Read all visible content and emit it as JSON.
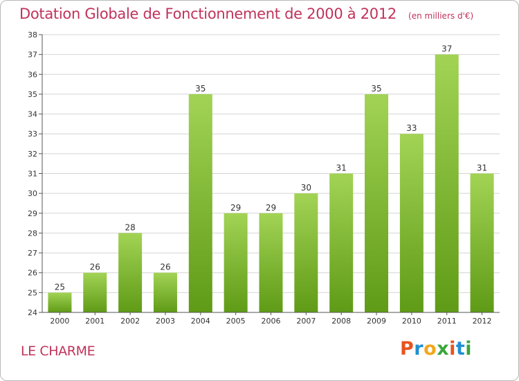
{
  "header": {
    "title": "Dotation Globale de Fonctionnement de 2000 à 2012",
    "unit": "(en milliers d'€)"
  },
  "commune": "LE CHARME",
  "logo": {
    "text": "Proxiti",
    "colors": [
      "#e8531f",
      "#1f8fd2",
      "#f2a81d",
      "#3aa63a",
      "#e8531f",
      "#1f8fd2",
      "#3aa63a"
    ]
  },
  "chart_data": {
    "type": "bar",
    "categories": [
      "2000",
      "2001",
      "2002",
      "2003",
      "2004",
      "2005",
      "2006",
      "2007",
      "2008",
      "2009",
      "2010",
      "2011",
      "2012"
    ],
    "values": [
      25,
      26,
      28,
      26,
      35,
      29,
      29,
      30,
      31,
      35,
      33,
      37,
      31
    ],
    "ylim": [
      24,
      38
    ],
    "yticks": [
      "24",
      "25",
      "26",
      "27",
      "28",
      "29",
      "30",
      "31",
      "32",
      "33",
      "34",
      "35",
      "36",
      "37",
      "38"
    ],
    "grid": true,
    "colors": {
      "bar_top": "#a2d355",
      "bar_bottom": "#5f9b16",
      "grid": "#d4d4d4",
      "axis": "#555555"
    }
  }
}
